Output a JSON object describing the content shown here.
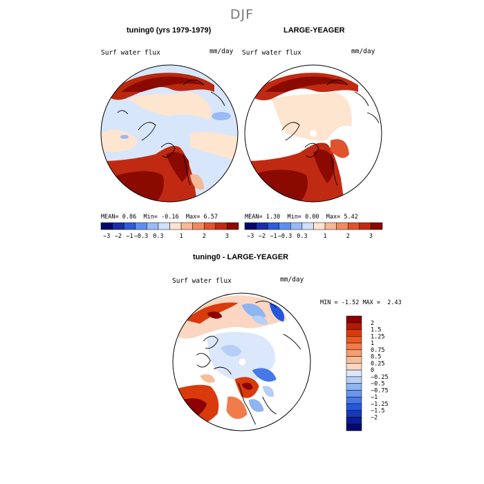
{
  "figure": {
    "season": "DJF"
  },
  "panels": [
    {
      "title": "tuning0 (yrs 1979-1979)",
      "variable": "Surf water flux",
      "units": "mm/day",
      "stats": {
        "mean_label": "MEAN=",
        "mean": "0.86",
        "min_label": "Min=",
        "min": "-0.16",
        "max_label": "Max=",
        "max": "6.57"
      }
    },
    {
      "title": "LARGE-YEAGER",
      "variable": "Surf water flux",
      "units": "mm/day",
      "stats": {
        "mean_label": "MEAN=",
        "mean": "1.30",
        "min_label": "Min=",
        "min": "0.00",
        "max_label": "Max=",
        "max": "5.42"
      }
    },
    {
      "title": "tuning0 - LARGE-YEAGER",
      "variable": "Surf water flux",
      "units": "mm/day",
      "stats": {
        "min_label": "MIN =",
        "min": "-1.52",
        "max_label": "MAX =",
        "max": "2.43"
      }
    }
  ],
  "colorbar_top": {
    "colors": [
      "#08086b",
      "#1a2ea8",
      "#2f5bd8",
      "#5f8ef0",
      "#9ab9f7",
      "#cfe0fb",
      "#fde5d0",
      "#f6b896",
      "#ef8a62",
      "#e0532f",
      "#c12a12",
      "#8b0a00"
    ],
    "tick_labels": [
      "-3",
      "-2",
      "-1",
      "-0.3",
      "0.3",
      "1",
      "2",
      "3"
    ]
  },
  "colorbar_diff": {
    "colors": [
      "#8b0000",
      "#b51a00",
      "#d83a0c",
      "#ea5a24",
      "#f27b4a",
      "#f59c72",
      "#f8bc9a",
      "#fbd6c0",
      "#dbe8fb",
      "#b5cff6",
      "#8fb4f2",
      "#6996ed",
      "#4678e6",
      "#2558dc",
      "#1638bb",
      "#0a1e95",
      "#020a6e"
    ],
    "tick_labels": [
      "2",
      "1.5",
      "1.25",
      "1",
      "0.75",
      "0.5",
      "0.25",
      "0",
      "-0.25",
      "-0.5",
      "-0.75",
      "-1",
      "-1.25",
      "-1.5",
      "-2"
    ]
  }
}
